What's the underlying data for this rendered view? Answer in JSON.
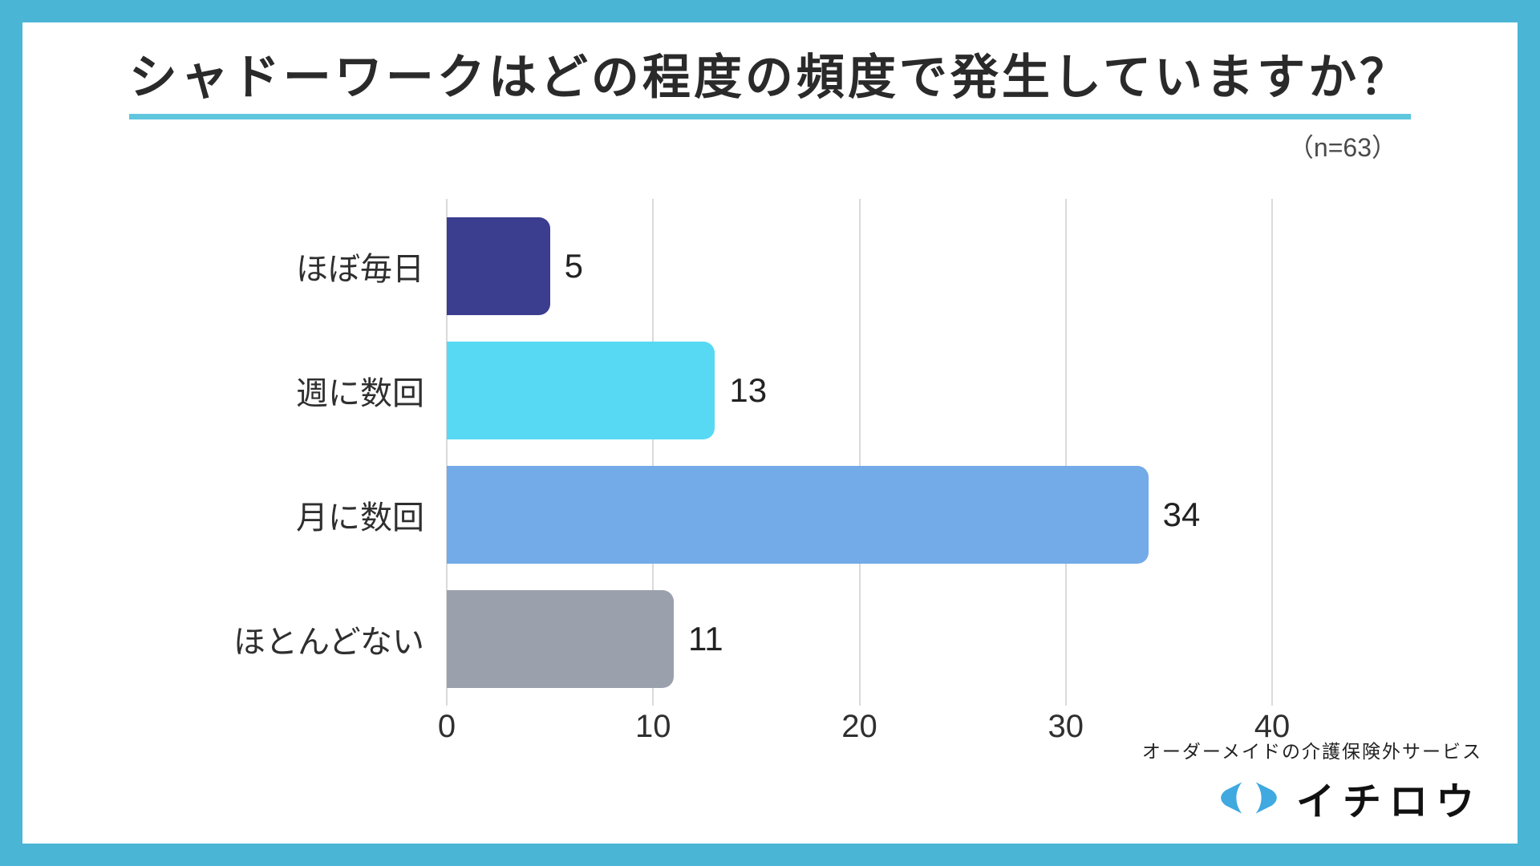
{
  "title": "シャドーワークはどの程度の頻度で発生していますか？",
  "sample_size": "（n=63）",
  "chart_data": {
    "type": "bar",
    "orientation": "horizontal",
    "title": "シャドーワークはどの程度の頻度で発生していますか？",
    "categories": [
      "ほぼ毎日",
      "週に数回",
      "月に数回",
      "ほとんどない"
    ],
    "values": [
      5,
      13,
      34,
      11
    ],
    "bar_colors": [
      "#3b3d8f",
      "#58d9f3",
      "#73aae8",
      "#9aa0ac"
    ],
    "xlabel": "",
    "ylabel": "",
    "xlim": [
      0,
      40
    ],
    "x_ticks": [
      0,
      10,
      20,
      30,
      40
    ],
    "grid": true,
    "legend": false
  },
  "footer": {
    "tagline": "オーダーメイドの介護保険外サービス",
    "brand": "イチロウ",
    "logo_color": "#3fa9e0"
  },
  "colors": {
    "frame": "#4ab5d5",
    "title_underline": "#5fc6de",
    "gridline": "#dadada"
  }
}
